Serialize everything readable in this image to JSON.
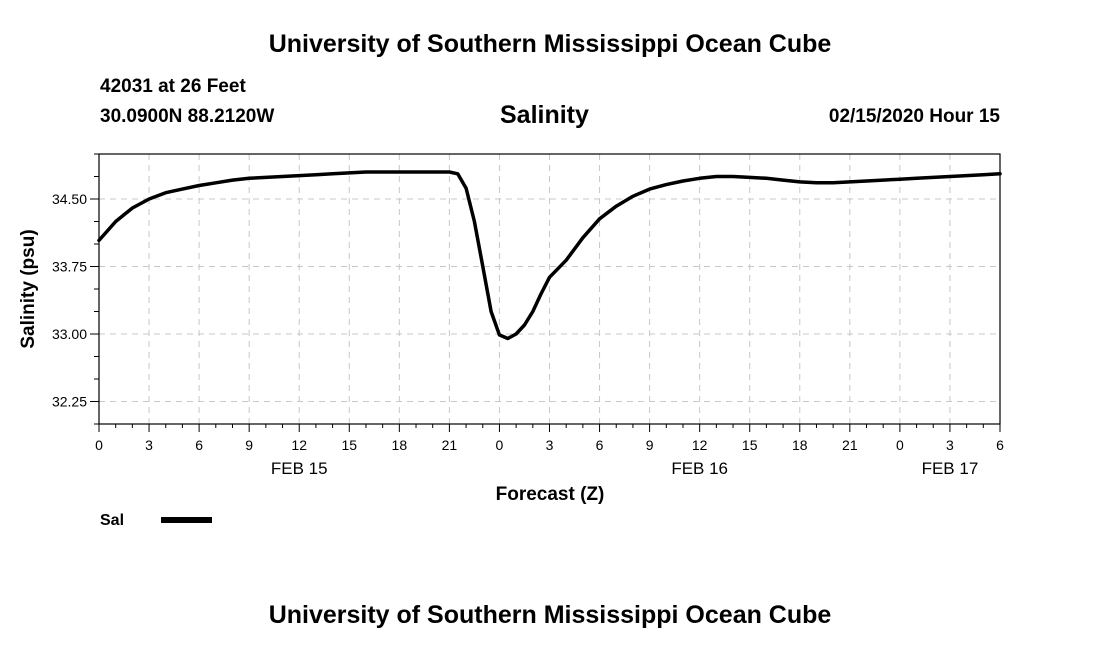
{
  "header": {
    "title": "University of Southern Mississippi Ocean Cube",
    "station": "42031 at 26 Feet",
    "location": "30.0900N 88.2120W",
    "timestamp": "02/15/2020 Hour 15"
  },
  "footer": {
    "title": "University of Southern Mississippi Ocean Cube"
  },
  "chart_data": {
    "type": "line",
    "title": "Salinity",
    "xlabel": "Forecast (Z)",
    "ylabel": "Salinity (psu)",
    "xlim": [
      0,
      54
    ],
    "ylim": [
      32.0,
      35.0
    ],
    "yticks": [
      32.25,
      33.0,
      33.75,
      34.5
    ],
    "ytick_labels": [
      "32.25",
      "33.00",
      "33.75",
      "34.50"
    ],
    "xticks": [
      0,
      3,
      6,
      9,
      12,
      15,
      18,
      21,
      24,
      27,
      30,
      33,
      36,
      39,
      42,
      45,
      48,
      51,
      54
    ],
    "xtick_labels": [
      "0",
      "3",
      "6",
      "9",
      "12",
      "15",
      "18",
      "21",
      "0",
      "3",
      "6",
      "9",
      "12",
      "15",
      "18",
      "21",
      "0",
      "3",
      "6"
    ],
    "date_labels": [
      {
        "x": 12,
        "label": "FEB 15"
      },
      {
        "x": 36,
        "label": "FEB 16"
      },
      {
        "x": 51,
        "label": "FEB 17"
      }
    ],
    "grid": true,
    "legend": "bottom-left",
    "series": [
      {
        "name": "Sal",
        "color": "#000000",
        "x": [
          0,
          1,
          2,
          3,
          4,
          5,
          6,
          7,
          8,
          9,
          10,
          11,
          12,
          13,
          14,
          15,
          16,
          17,
          18,
          19,
          20,
          21,
          21.5,
          22,
          22.5,
          23,
          23.5,
          24,
          24.5,
          25,
          25.5,
          26,
          26.5,
          27,
          28,
          29,
          30,
          31,
          32,
          33,
          34,
          35,
          36,
          37,
          38,
          39,
          40,
          41,
          42,
          43,
          44,
          45,
          46,
          47,
          48,
          49,
          50,
          51,
          52,
          53,
          54
        ],
        "values": [
          34.04,
          34.25,
          34.4,
          34.5,
          34.57,
          34.61,
          34.65,
          34.68,
          34.71,
          34.73,
          34.74,
          34.75,
          34.76,
          34.77,
          34.78,
          34.79,
          34.8,
          34.8,
          34.8,
          34.8,
          34.8,
          34.8,
          34.78,
          34.62,
          34.25,
          33.75,
          33.25,
          32.99,
          32.95,
          33.0,
          33.1,
          33.25,
          33.45,
          33.63,
          33.82,
          34.07,
          34.28,
          34.42,
          34.53,
          34.61,
          34.66,
          34.7,
          34.73,
          34.75,
          34.75,
          34.74,
          34.73,
          34.71,
          34.69,
          34.68,
          34.68,
          34.69,
          34.7,
          34.71,
          34.72,
          34.73,
          34.74,
          34.75,
          34.76,
          34.77,
          34.78
        ]
      }
    ]
  }
}
